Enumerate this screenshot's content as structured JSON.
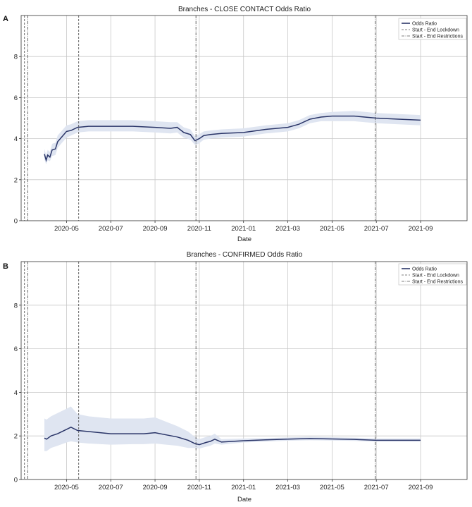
{
  "chart_data": [
    {
      "panel_letter": "A",
      "type": "line",
      "title": "Branches - CLOSE CONTACT Odds Ratio",
      "xlabel": "Date",
      "ylabel": "",
      "ylim": [
        0,
        10
      ],
      "yticks": [
        0,
        2,
        4,
        6,
        8
      ],
      "xlim": [
        -1.05,
        19.1
      ],
      "xticks": [
        {
          "label": "2020-05",
          "x": 1
        },
        {
          "label": "2020-07",
          "x": 3
        },
        {
          "label": "2020-09",
          "x": 5
        },
        {
          "label": "2020-11",
          "x": 7
        },
        {
          "label": "2021-01",
          "x": 9
        },
        {
          "label": "2021-03",
          "x": 11
        },
        {
          "label": "2021-05",
          "x": 13
        },
        {
          "label": "2021-07",
          "x": 15
        },
        {
          "label": "2021-09",
          "x": 17
        }
      ],
      "grid": true,
      "legend": [
        "Odds Ratio",
        "Start - End Lockdown",
        "Start - End Restrictions"
      ],
      "legend_position": "top-right",
      "vlines_lockdown": [
        -0.9,
        1.55
      ],
      "vlines_restrictions": [
        -0.75,
        6.85,
        14.95
      ],
      "colors": {
        "line": "#2a3568",
        "band": "#dfe5f1",
        "grid": "#c8c8c8",
        "vline": "#555555"
      },
      "series": [
        {
          "name": "Odds Ratio",
          "x": [
            0.0,
            0.08,
            0.15,
            0.25,
            0.35,
            0.5,
            0.6,
            0.8,
            1.0,
            1.2,
            1.5,
            2.0,
            3.0,
            4.0,
            5.0,
            5.7,
            6.0,
            6.3,
            6.6,
            6.8,
            6.9,
            7.0,
            7.2,
            7.5,
            8.0,
            9.0,
            10.0,
            11.0,
            11.5,
            12.0,
            12.5,
            13.0,
            14.0,
            15.0,
            16.0,
            17.0
          ],
          "y": [
            3.25,
            2.95,
            3.2,
            3.1,
            3.45,
            3.5,
            3.85,
            4.1,
            4.35,
            4.4,
            4.55,
            4.6,
            4.6,
            4.6,
            4.55,
            4.5,
            4.55,
            4.3,
            4.2,
            3.9,
            3.95,
            4.0,
            4.15,
            4.2,
            4.25,
            4.3,
            4.45,
            4.55,
            4.7,
            4.95,
            5.05,
            5.1,
            5.1,
            5.0,
            4.95,
            4.9
          ],
          "lower": [
            3.0,
            2.75,
            2.95,
            2.9,
            3.15,
            3.2,
            3.55,
            3.8,
            4.05,
            4.15,
            4.3,
            4.35,
            4.35,
            4.35,
            4.3,
            4.25,
            4.3,
            4.05,
            3.95,
            3.7,
            3.72,
            3.78,
            3.95,
            4.0,
            4.05,
            4.1,
            4.25,
            4.35,
            4.5,
            4.75,
            4.85,
            4.85,
            4.85,
            4.75,
            4.7,
            4.65
          ],
          "upper": [
            3.5,
            3.2,
            3.45,
            3.35,
            3.75,
            3.8,
            4.15,
            4.4,
            4.65,
            4.7,
            4.85,
            4.9,
            4.9,
            4.9,
            4.85,
            4.8,
            4.8,
            4.55,
            4.45,
            4.12,
            4.18,
            4.22,
            4.35,
            4.4,
            4.45,
            4.5,
            4.65,
            4.75,
            4.9,
            5.15,
            5.25,
            5.3,
            5.35,
            5.25,
            5.2,
            5.15
          ]
        }
      ]
    },
    {
      "panel_letter": "B",
      "type": "line",
      "title": "Branches - CONFIRMED Odds Ratio",
      "xlabel": "Date",
      "ylabel": "",
      "ylim": [
        0,
        10
      ],
      "yticks": [
        0,
        2,
        4,
        6,
        8
      ],
      "xlim": [
        -1.05,
        19.1
      ],
      "xticks": [
        {
          "label": "2020-05",
          "x": 1
        },
        {
          "label": "2020-07",
          "x": 3
        },
        {
          "label": "2020-09",
          "x": 5
        },
        {
          "label": "2020-11",
          "x": 7
        },
        {
          "label": "2021-01",
          "x": 9
        },
        {
          "label": "2021-03",
          "x": 11
        },
        {
          "label": "2021-05",
          "x": 13
        },
        {
          "label": "2021-07",
          "x": 15
        },
        {
          "label": "2021-09",
          "x": 17
        }
      ],
      "grid": true,
      "legend": [
        "Odds Ratio",
        "Start - End Lockdown",
        "Start - End Restrictions"
      ],
      "legend_position": "top-right",
      "vlines_lockdown": [
        -0.9,
        1.55
      ],
      "vlines_restrictions": [
        -0.75,
        6.85,
        14.95
      ],
      "colors": {
        "line": "#2a3568",
        "band": "#dfe5f1",
        "grid": "#c8c8c8",
        "vline": "#555555"
      },
      "series": [
        {
          "name": "Odds Ratio",
          "x": [
            0.0,
            0.1,
            0.3,
            0.6,
            1.0,
            1.2,
            1.5,
            2.0,
            3.0,
            4.0,
            4.5,
            5.0,
            5.5,
            6.0,
            6.5,
            6.8,
            7.0,
            7.3,
            7.5,
            7.7,
            8.0,
            9.0,
            10.0,
            11.0,
            12.0,
            13.0,
            14.0,
            15.0,
            16.0,
            17.0
          ],
          "y": [
            1.9,
            1.85,
            2.0,
            2.1,
            2.3,
            2.4,
            2.25,
            2.2,
            2.1,
            2.1,
            2.1,
            2.15,
            2.05,
            1.95,
            1.8,
            1.65,
            1.6,
            1.7,
            1.75,
            1.85,
            1.72,
            1.78,
            1.82,
            1.85,
            1.88,
            1.86,
            1.84,
            1.8,
            1.8,
            1.8
          ],
          "lower": [
            1.3,
            1.3,
            1.45,
            1.55,
            1.7,
            1.75,
            1.7,
            1.65,
            1.6,
            1.62,
            1.62,
            1.65,
            1.6,
            1.55,
            1.45,
            1.45,
            1.42,
            1.5,
            1.55,
            1.65,
            1.6,
            1.7,
            1.74,
            1.78,
            1.8,
            1.79,
            1.77,
            1.74,
            1.74,
            1.74
          ],
          "upper": [
            2.8,
            2.75,
            2.9,
            3.05,
            3.25,
            3.35,
            3.0,
            2.9,
            2.8,
            2.8,
            2.8,
            2.85,
            2.65,
            2.45,
            2.2,
            1.95,
            1.85,
            1.95,
            2.0,
            2.1,
            1.85,
            1.88,
            1.9,
            1.93,
            1.96,
            1.94,
            1.92,
            1.88,
            1.88,
            1.88
          ]
        }
      ]
    }
  ]
}
